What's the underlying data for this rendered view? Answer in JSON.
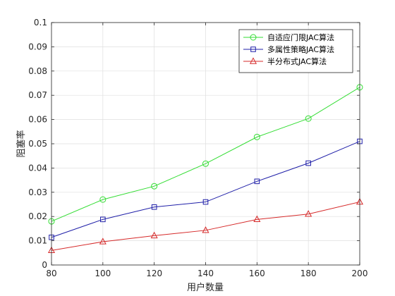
{
  "chart_data": {
    "type": "line",
    "xlabel": "用户数量",
    "ylabel": "阻塞率",
    "x": [
      80,
      100,
      120,
      140,
      160,
      180,
      200
    ],
    "xticks": [
      "80",
      "100",
      "120",
      "140",
      "160",
      "180",
      "200"
    ],
    "xlim": [
      80,
      200
    ],
    "ylim": [
      0,
      0.1
    ],
    "yticks": [
      "0",
      "0.01",
      "0.02",
      "0.03",
      "0.04",
      "0.05",
      "0.06",
      "0.07",
      "0.08",
      "0.09",
      "0.1"
    ],
    "grid": true,
    "legend": "top-right",
    "series": [
      {
        "name": "自适应门限JAC算法",
        "marker": "circle",
        "color": "#33dd33",
        "values": [
          0.018,
          0.027,
          0.0325,
          0.0418,
          0.0528,
          0.0604,
          0.0733
        ]
      },
      {
        "name": "多属性策略JAC算法",
        "marker": "square",
        "color": "#1f1fa8",
        "values": [
          0.0114,
          0.0188,
          0.0239,
          0.026,
          0.0345,
          0.042,
          0.051
        ]
      },
      {
        "name": "半分布式JAC算法",
        "marker": "triangle",
        "color": "#d62a2a",
        "values": [
          0.006,
          0.0096,
          0.0121,
          0.0143,
          0.0188,
          0.021,
          0.026
        ]
      }
    ]
  }
}
